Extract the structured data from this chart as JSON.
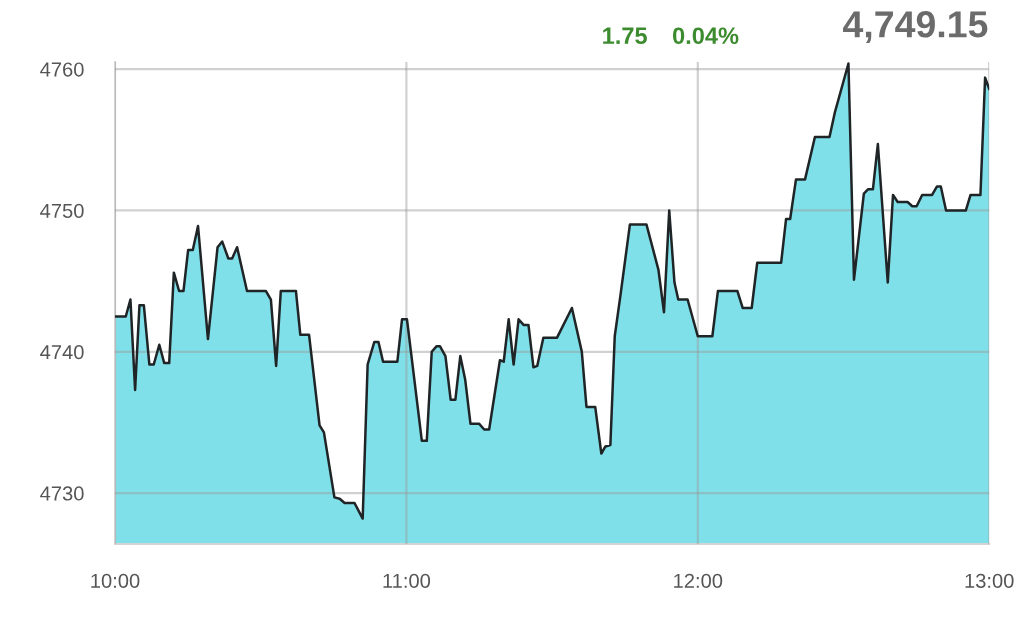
{
  "chart_data": {
    "type": "area",
    "annotations": [
      "1.75",
      "0.04%",
      "4,749.15"
    ],
    "xlim": [
      10,
      13.0
    ],
    "xticks": [
      {
        "value": 10,
        "label": "10:00"
      },
      {
        "value": 11,
        "label": "11:00"
      },
      {
        "value": 12,
        "label": "12:00"
      },
      {
        "value": 13,
        "label": "13:00"
      }
    ],
    "ylim": [
      4726.4,
      4760.5
    ],
    "yticks": [
      4730,
      4740,
      4750,
      4760
    ],
    "grid": true,
    "series": [
      {
        "color": "#80e0ea",
        "x": [
          10.0,
          10.037,
          10.053,
          10.069,
          10.084,
          10.099,
          10.118,
          10.133,
          10.152,
          10.169,
          10.186,
          10.202,
          10.22,
          10.235,
          10.251,
          10.267,
          10.285,
          10.319,
          10.352,
          10.368,
          10.389,
          10.402,
          10.419,
          10.453,
          10.518,
          10.535,
          10.553,
          10.569,
          10.621,
          10.636,
          10.666,
          10.702,
          10.717,
          10.753,
          10.771,
          10.788,
          10.822,
          10.85,
          10.867,
          10.89,
          10.904,
          10.92,
          10.969,
          10.985,
          11.002,
          11.053,
          11.07,
          11.087,
          11.104,
          11.115,
          11.134,
          11.152,
          11.168,
          11.185,
          11.202,
          11.22,
          11.25,
          11.267,
          11.284,
          11.321,
          11.334,
          11.351,
          11.368,
          11.385,
          11.402,
          11.419,
          11.436,
          11.449,
          11.47,
          11.517,
          11.568,
          11.602,
          11.618,
          11.648,
          11.669,
          11.683,
          11.7,
          11.715,
          11.734,
          11.767,
          11.824,
          11.865,
          11.884,
          11.902,
          11.92,
          11.933,
          11.965,
          12.0,
          12.05,
          12.069,
          12.136,
          12.154,
          12.185,
          12.204,
          12.286,
          12.303,
          12.317,
          12.337,
          12.368,
          12.402,
          12.452,
          12.47,
          12.517,
          12.536,
          12.57,
          12.584,
          12.601,
          12.618,
          12.652,
          12.67,
          12.686,
          12.72,
          12.736,
          12.751,
          12.77,
          12.804,
          12.821,
          12.834,
          12.852,
          12.92,
          12.936,
          12.97,
          12.986,
          13.0
        ],
        "values": [
          4742.5,
          4742.5,
          4743.7,
          4737.3,
          4743.3,
          4743.3,
          4739.1,
          4739.1,
          4740.5,
          4739.2,
          4739.2,
          4745.6,
          4744.3,
          4744.3,
          4747.2,
          4747.2,
          4748.9,
          4740.9,
          4747.4,
          4747.8,
          4746.6,
          4746.6,
          4747.4,
          4744.3,
          4744.3,
          4743.7,
          4739.0,
          4744.3,
          4744.3,
          4741.2,
          4741.2,
          4734.8,
          4734.3,
          4729.7,
          4729.6,
          4729.3,
          4729.3,
          4728.2,
          4739.1,
          4740.7,
          4740.7,
          4739.3,
          4739.3,
          4742.3,
          4742.3,
          4733.7,
          4733.7,
          4740.0,
          4740.4,
          4740.4,
          4739.7,
          4736.6,
          4736.6,
          4739.7,
          4738.0,
          4734.9,
          4734.9,
          4734.5,
          4734.5,
          4739.4,
          4739.3,
          4742.3,
          4739.1,
          4742.3,
          4741.9,
          4741.9,
          4738.9,
          4739.0,
          4741.0,
          4741.0,
          4743.1,
          4740.0,
          4736.1,
          4736.1,
          4732.8,
          4733.3,
          4733.4,
          4741.1,
          4743.9,
          4749.0,
          4749.0,
          4745.8,
          4742.8,
          4750.0,
          4744.9,
          4743.7,
          4743.7,
          4741.1,
          4741.1,
          4744.3,
          4744.3,
          4743.1,
          4743.1,
          4746.3,
          4746.3,
          4749.4,
          4749.4,
          4752.2,
          4752.2,
          4755.2,
          4755.2,
          4756.9,
          4760.4,
          4745.1,
          4751.2,
          4751.5,
          4751.5,
          4754.7,
          4744.9,
          4751.1,
          4750.6,
          4750.6,
          4750.3,
          4750.3,
          4751.1,
          4751.1,
          4751.7,
          4751.7,
          4750.0,
          4750.0,
          4751.1,
          4751.1,
          4759.4,
          4758.6
        ]
      }
    ]
  }
}
